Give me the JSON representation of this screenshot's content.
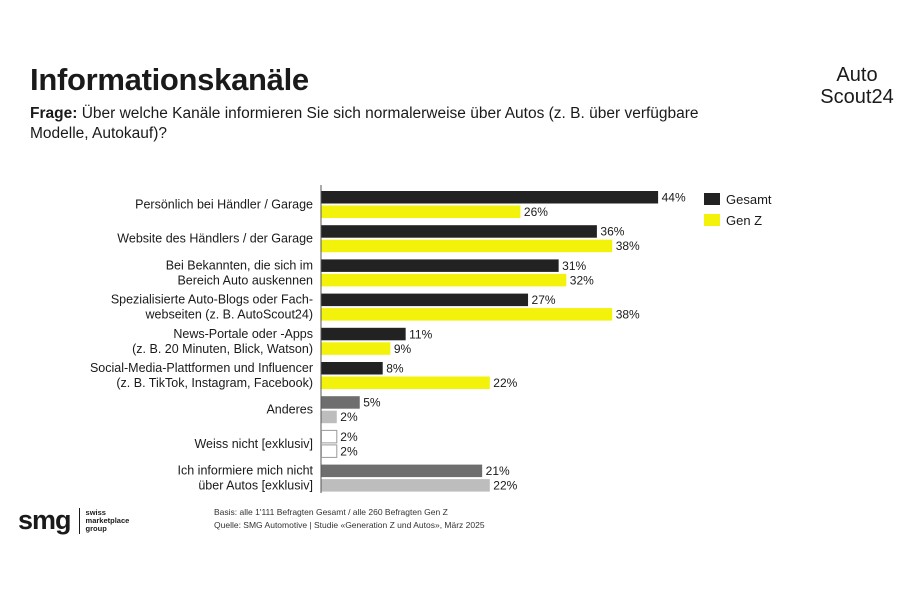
{
  "header": {
    "title": "Informationskanäle",
    "question_prefix": "Frage:",
    "question_text": "Über welche Kanäle informieren Sie sich normalerweise über Autos (z. B. über verfügbare Modelle, Autokauf)?"
  },
  "brand": {
    "line1": "Auto",
    "line2": "Scout24"
  },
  "chart_data": {
    "type": "bar",
    "orientation": "horizontal",
    "title": "Informationskanäle",
    "categories": [
      [
        "Persönlich bei Händler / Garage"
      ],
      [
        "Website des Händlers / der Garage"
      ],
      [
        "Bei Bekannten, die sich im",
        "Bereich Auto auskennen"
      ],
      [
        "Spezialisierte Auto-Blogs oder Fach-",
        "webseiten (z. B. AutoScout24)"
      ],
      [
        "News-Portale oder -Apps",
        "(z. B. 20 Minuten, Blick, Watson)"
      ],
      [
        "Social-Media-Plattformen und Influencer",
        "(z. B. TikTok, Instagram, Facebook)"
      ],
      [
        "Anderes"
      ],
      [
        "Weiss nicht [exklusiv]"
      ],
      [
        "Ich informiere mich nicht",
        "über Autos [exklusiv]"
      ]
    ],
    "series": [
      {
        "name": "Gesamt",
        "color": "#222222",
        "values": [
          44,
          36,
          31,
          27,
          11,
          8,
          5,
          2,
          21
        ]
      },
      {
        "name": "Gen Z",
        "color": "#f2f20a",
        "values": [
          26,
          38,
          32,
          38,
          9,
          22,
          2,
          2,
          22
        ]
      }
    ],
    "category_colors": [
      null,
      null,
      null,
      null,
      null,
      null,
      {
        "Gesamt": "#6e6e6e",
        "Gen Z": "#bdbdbd"
      },
      {
        "Gesamt": "#ffffff",
        "Gen Z": "#ffffff"
      },
      {
        "Gesamt": "#6e6e6e",
        "Gen Z": "#bdbdbd"
      }
    ],
    "value_suffix": "%",
    "xlim": [
      0,
      50
    ],
    "legend": {
      "position": "right",
      "entries": [
        "Gesamt",
        "Gen Z"
      ]
    },
    "grid": false
  },
  "footer": {
    "logo_mark": "smg",
    "logo_sub": [
      "swiss",
      "marketplace",
      "group"
    ],
    "basis": "Basis: alle 1'111 Befragten Gesamt / alle 260 Befragten Gen Z",
    "source": "Quelle: SMG Automotive | Studie «Generation Z und Autos», März 2025"
  }
}
